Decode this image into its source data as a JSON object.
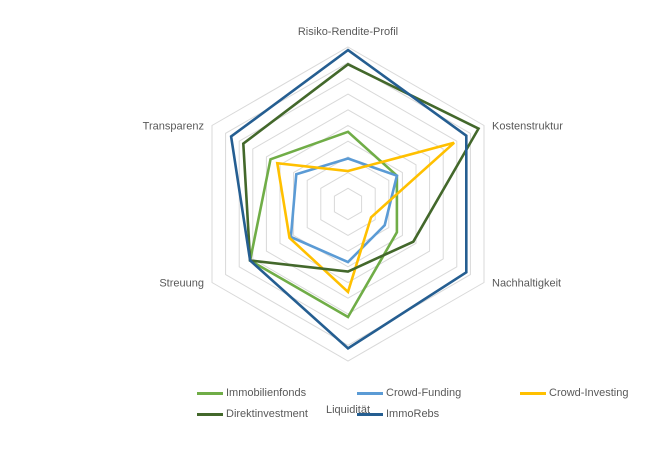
{
  "chart_data": {
    "type": "radar",
    "axes": [
      "Risiko-Rendite-Profil",
      "Kostenstruktur",
      "Nachhaltigkeit",
      "Liquidität",
      "Streuung",
      "Transparenz"
    ],
    "rmax": 10,
    "rings": 10,
    "grid": true,
    "legend_position": "bottom",
    "series": [
      {
        "name": "Immobilienfonds",
        "color": "#70ad47",
        "values": [
          4.6,
          3.6,
          3.6,
          7.2,
          7.2,
          5.7
        ]
      },
      {
        "name": "Crowd-Funding",
        "color": "#5b9bd5",
        "values": [
          2.9,
          3.6,
          2.7,
          3.7,
          4.2,
          3.8
        ]
      },
      {
        "name": "Crowd-Investing",
        "color": "#ffc000",
        "values": [
          2.1,
          7.8,
          1.7,
          5.6,
          4.3,
          5.2
        ]
      },
      {
        "name": "Direktinvestment",
        "color": "#43682b",
        "values": [
          8.9,
          9.6,
          4.8,
          4.3,
          7.2,
          7.7
        ]
      },
      {
        "name": "ImmoRebs",
        "color": "#255e91",
        "values": [
          9.8,
          8.7,
          8.7,
          9.2,
          7.2,
          8.6
        ]
      }
    ]
  }
}
